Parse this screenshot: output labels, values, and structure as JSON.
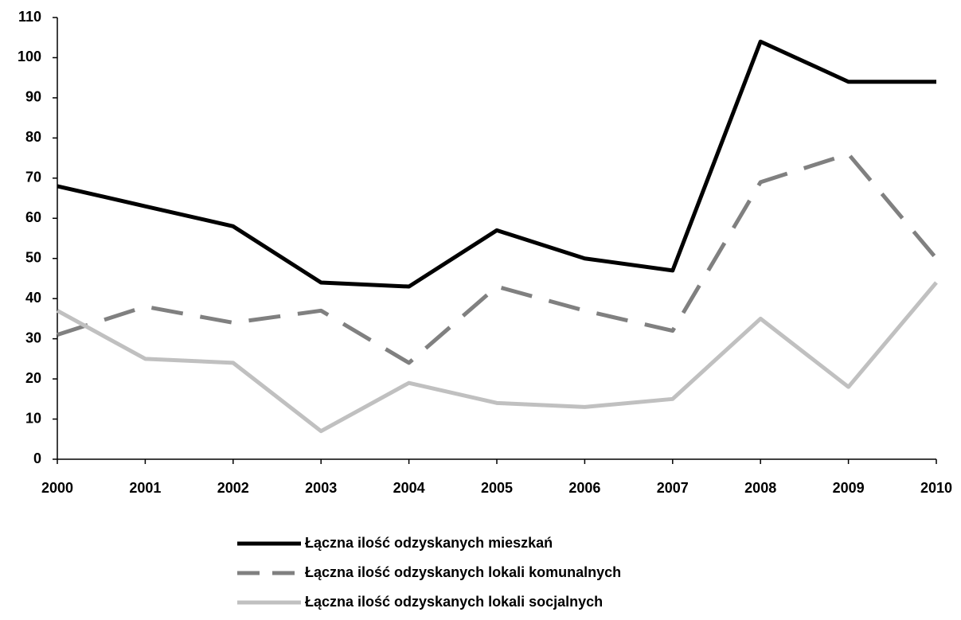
{
  "chart_data": {
    "type": "line",
    "categories": [
      "2000",
      "2001",
      "2002",
      "2003",
      "2004",
      "2005",
      "2006",
      "2007",
      "2008",
      "2009",
      "2010"
    ],
    "series": [
      {
        "name": "Łączna ilość odzyskanych mieszkań",
        "color": "#000000",
        "dashed": false,
        "values": [
          68,
          63,
          58,
          44,
          43,
          57,
          50,
          47,
          104,
          94,
          94
        ]
      },
      {
        "name": "Łączna ilość odzyskanych lokali komunalnych",
        "color": "#808080",
        "dashed": true,
        "values": [
          31,
          38,
          34,
          37,
          24,
          43,
          37,
          32,
          69,
          76,
          50
        ]
      },
      {
        "name": "Łączna ilość odzyskanych lokali socjalnych",
        "color": "#c0c0c0",
        "dashed": false,
        "values": [
          37,
          25,
          24,
          7,
          19,
          14,
          13,
          15,
          35,
          18,
          44
        ]
      }
    ],
    "ylim": [
      0,
      110
    ],
    "yticks": [
      0,
      10,
      20,
      30,
      40,
      50,
      60,
      70,
      80,
      90,
      100,
      110
    ],
    "grid": false,
    "legend": "bottom"
  }
}
